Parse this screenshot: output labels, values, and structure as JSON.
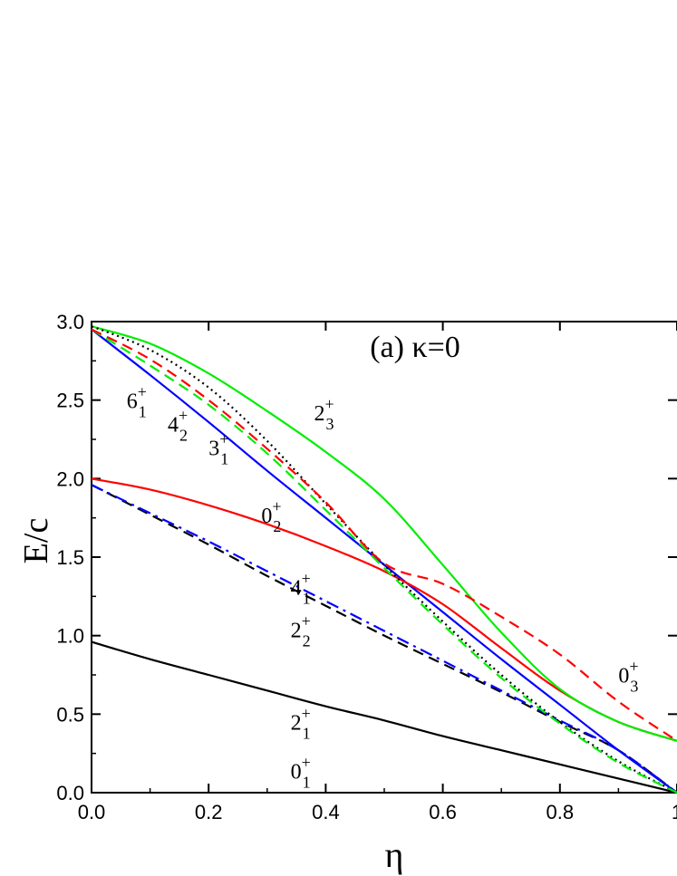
{
  "chart_data": {
    "type": "line",
    "panel_label": "(a)  κ=0",
    "xlabel": "η",
    "ylabel": "E/c",
    "xlim": [
      0.0,
      1.0
    ],
    "ylim": [
      0.0,
      3.0
    ],
    "xticks": [
      0.0,
      0.2,
      0.4,
      0.6,
      0.8,
      1.0
    ],
    "xtick_labels": [
      "0.0",
      "0.2",
      "0.4",
      "0.6",
      "0.8",
      "1"
    ],
    "yticks": [
      0.0,
      0.5,
      1.0,
      1.5,
      2.0,
      2.5,
      3.0
    ],
    "ytick_labels": [
      "0.0",
      "0.5",
      "1.0",
      "1.5",
      "2.0",
      "2.5",
      "3.0"
    ],
    "grid": false,
    "series": [
      {
        "name": "2₁⁺",
        "color": "#000000",
        "style": "solid",
        "x": [
          0.0,
          0.1,
          0.2,
          0.3,
          0.4,
          0.5,
          0.6,
          0.7,
          0.8,
          0.9,
          1.0
        ],
        "y": [
          0.96,
          0.85,
          0.75,
          0.65,
          0.55,
          0.46,
          0.36,
          0.27,
          0.18,
          0.09,
          0.0
        ]
      },
      {
        "name": "2₂⁺",
        "color": "#000000",
        "style": "dashed",
        "x": [
          0.0,
          0.1,
          0.2,
          0.3,
          0.4,
          0.5,
          0.6,
          0.7,
          0.8,
          0.9,
          1.0
        ],
        "y": [
          1.96,
          1.77,
          1.58,
          1.38,
          1.19,
          1.0,
          0.82,
          0.64,
          0.45,
          0.27,
          0.0
        ]
      },
      {
        "name": "4₁⁺",
        "color": "#0000ff",
        "style": "dashdot",
        "x": [
          0.0,
          0.1,
          0.2,
          0.3,
          0.4,
          0.5,
          0.6,
          0.7,
          0.8,
          0.9,
          1.0
        ],
        "y": [
          1.96,
          1.78,
          1.6,
          1.41,
          1.22,
          1.03,
          0.84,
          0.65,
          0.46,
          0.27,
          0.0
        ]
      },
      {
        "name": "3₁⁺",
        "color": "#0000ff",
        "style": "solid",
        "x": [
          0.0,
          0.1,
          0.2,
          0.3,
          0.4,
          0.5,
          0.6,
          0.7,
          0.8,
          0.9,
          1.0
        ],
        "y": [
          2.95,
          2.66,
          2.36,
          2.05,
          1.75,
          1.45,
          1.15,
          0.85,
          0.56,
          0.27,
          0.0
        ]
      },
      {
        "name": "0₂⁺",
        "color": "#ff0000",
        "style": "solid",
        "x": [
          0.0,
          0.1,
          0.2,
          0.3,
          0.4,
          0.5,
          0.6,
          0.7,
          0.8,
          0.9,
          1.0
        ],
        "y": [
          2.0,
          1.93,
          1.83,
          1.71,
          1.57,
          1.41,
          1.2,
          0.92,
          0.65,
          0.45,
          0.33
        ]
      },
      {
        "name": "2₃⁺",
        "color": "#00ee00",
        "style": "solid",
        "x": [
          0.0,
          0.1,
          0.2,
          0.3,
          0.4,
          0.5,
          0.6,
          0.7,
          0.8,
          0.9,
          1.0
        ],
        "y": [
          2.97,
          2.86,
          2.67,
          2.43,
          2.17,
          1.87,
          1.45,
          1.02,
          0.66,
          0.45,
          0.33
        ]
      },
      {
        "name": "6₁⁺",
        "color": "#000000",
        "style": "dotted",
        "x": [
          0.0,
          0.1,
          0.2,
          0.3,
          0.4,
          0.5,
          0.6,
          0.7,
          0.8,
          0.9,
          1.0
        ],
        "y": [
          2.97,
          2.82,
          2.58,
          2.24,
          1.84,
          1.45,
          1.09,
          0.75,
          0.45,
          0.2,
          0.0
        ]
      },
      {
        "name": "4₂⁺",
        "color": "#00ee00",
        "style": "dashed",
        "x": [
          0.0,
          0.1,
          0.2,
          0.3,
          0.4,
          0.5,
          0.6,
          0.7,
          0.8,
          0.9,
          1.0
        ],
        "y": [
          2.95,
          2.72,
          2.47,
          2.16,
          1.8,
          1.43,
          1.07,
          0.73,
          0.44,
          0.19,
          0.0
        ]
      },
      {
        "name": "0₃⁺",
        "color": "#ff0000",
        "style": "dashed",
        "x": [
          0.0,
          0.1,
          0.2,
          0.3,
          0.4,
          0.5,
          0.6,
          0.7,
          0.8,
          0.9,
          1.0
        ],
        "y": [
          2.95,
          2.76,
          2.5,
          2.19,
          1.85,
          1.46,
          1.33,
          1.12,
          0.88,
          0.58,
          0.33
        ]
      }
    ],
    "annotations": [
      {
        "base": "6",
        "sub": "1",
        "sup": "+",
        "x": 0.06,
        "y": 2.45
      },
      {
        "base": "4",
        "sub": "2",
        "sup": "+",
        "x": 0.13,
        "y": 2.3
      },
      {
        "base": "3",
        "sub": "1",
        "sup": "+",
        "x": 0.2,
        "y": 2.15
      },
      {
        "base": "2",
        "sub": "3",
        "sup": "+",
        "x": 0.38,
        "y": 2.37
      },
      {
        "base": "0",
        "sub": "2",
        "sup": "+",
        "x": 0.29,
        "y": 1.72
      },
      {
        "base": "4",
        "sub": "1",
        "sup": "+",
        "x": 0.34,
        "y": 1.26
      },
      {
        "base": "2",
        "sub": "2",
        "sup": "+",
        "x": 0.34,
        "y": 0.99
      },
      {
        "base": "0",
        "sub": "3",
        "sup": "+",
        "x": 0.9,
        "y": 0.7
      },
      {
        "base": "2",
        "sub": "1",
        "sup": "+",
        "x": 0.34,
        "y": 0.4
      },
      {
        "base": "0",
        "sub": "1",
        "sup": "+",
        "x": 0.34,
        "y": 0.09
      }
    ]
  }
}
